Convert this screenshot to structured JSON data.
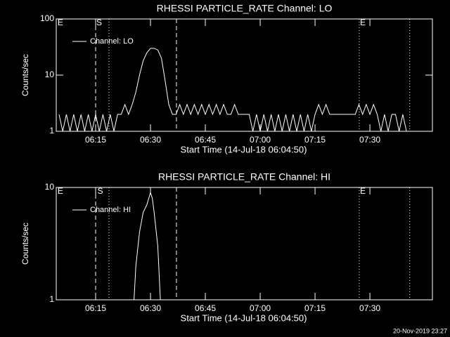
{
  "chart_data": [
    {
      "type": "line",
      "title": "RHESSI PARTICLE_RATE Channel: LO",
      "xlabel": "Start Time (14-Jul-18 06:04:50)",
      "ylabel": "Counts/sec",
      "log_y": true,
      "ylim": [
        1,
        100
      ],
      "yticks": [
        1,
        10,
        100
      ],
      "xlim": [
        4.23,
        107.1
      ],
      "xticks": [
        {
          "value": 15,
          "label": "06:15"
        },
        {
          "value": 30,
          "label": "06:30"
        },
        {
          "value": 45,
          "label": "06:45"
        },
        {
          "value": 60,
          "label": "07:00"
        },
        {
          "value": 75,
          "label": "07:15"
        },
        {
          "value": 90,
          "label": "07:30"
        }
      ],
      "legend": "upper left",
      "vlines": [
        {
          "x": 15,
          "style": "dashed"
        },
        {
          "x": 18.65,
          "style": "dotted"
        },
        {
          "x": 37.1,
          "style": "dashed"
        },
        {
          "x": 87.1,
          "style": "dotted"
        },
        {
          "x": 100.9,
          "style": "dotted"
        }
      ],
      "annotations": [
        {
          "text": "E",
          "x": 4.6
        },
        {
          "text": "S",
          "x": 15.2
        },
        {
          "text": "E",
          "x": 87.3
        }
      ],
      "x": [
        5,
        6,
        7,
        8,
        9,
        10,
        11,
        12,
        13,
        14,
        15,
        16,
        17,
        18,
        19,
        20,
        21,
        22,
        23,
        24,
        25,
        26,
        27,
        28,
        29,
        30,
        31,
        32,
        33,
        34,
        35,
        36,
        37,
        38,
        39,
        40,
        41,
        42,
        43,
        44,
        45,
        46,
        47,
        48,
        49,
        50,
        51,
        52,
        53,
        54,
        55,
        56,
        57,
        58,
        59,
        60,
        61,
        62,
        63,
        64,
        65,
        66,
        67,
        68,
        69,
        70,
        71,
        72,
        73,
        74,
        75,
        76,
        77,
        78,
        79,
        80,
        81,
        82,
        83,
        84,
        85,
        86,
        87,
        88,
        89,
        90,
        91,
        92,
        93,
        94,
        95,
        96,
        97,
        98,
        99,
        100,
        101
      ],
      "series": [
        {
          "name": "Channel: LO",
          "color": "#ffffff",
          "values": [
            2,
            1,
            2,
            1,
            2,
            1,
            2,
            1,
            2,
            1,
            2,
            1,
            2,
            1,
            2,
            1,
            2,
            2,
            3,
            2,
            3,
            5,
            10,
            18,
            25,
            30,
            30,
            28,
            20,
            8,
            3,
            2,
            2,
            3,
            2,
            3,
            2,
            3,
            2,
            3,
            2,
            3,
            2,
            3,
            2,
            3,
            2,
            2,
            3,
            2,
            2,
            2,
            2,
            1,
            2,
            1,
            2,
            1,
            2,
            1,
            2,
            1,
            2,
            1,
            2,
            1,
            2,
            1,
            2,
            1,
            2,
            3,
            2,
            3,
            2,
            2,
            2,
            2,
            2,
            2,
            2,
            2,
            3,
            2,
            3,
            2,
            3,
            2,
            1,
            2,
            1,
            2,
            2,
            1,
            2,
            1,
            1
          ]
        }
      ]
    },
    {
      "type": "line",
      "title": "RHESSI PARTICLE_RATE Channel: HI",
      "xlabel": "Start Time (14-Jul-18 06:04:50)",
      "ylabel": "Counts/sec",
      "log_y": true,
      "ylim": [
        1,
        10
      ],
      "yticks": [
        1,
        10
      ],
      "xlim": [
        4.23,
        107.1
      ],
      "xticks": [
        {
          "value": 15,
          "label": "06:15"
        },
        {
          "value": 30,
          "label": "06:30"
        },
        {
          "value": 45,
          "label": "06:45"
        },
        {
          "value": 60,
          "label": "07:00"
        },
        {
          "value": 75,
          "label": "07:15"
        },
        {
          "value": 90,
          "label": "07:30"
        }
      ],
      "legend": "upper left",
      "vlines": [
        {
          "x": 15,
          "style": "dashed"
        },
        {
          "x": 18.65,
          "style": "dotted"
        },
        {
          "x": 37.1,
          "style": "dashed"
        },
        {
          "x": 87.1,
          "style": "dotted"
        },
        {
          "x": 100.9,
          "style": "dotted"
        }
      ],
      "annotations": [
        {
          "text": "E",
          "x": 4.6
        },
        {
          "text": "S",
          "x": 15.5
        },
        {
          "text": "E",
          "x": 87.3
        }
      ],
      "x": [
        25.5,
        26,
        27,
        28,
        29,
        30,
        30.5,
        31,
        32,
        32.7
      ],
      "series": [
        {
          "name": "Channel: HI",
          "color": "#ffffff",
          "values": [
            1,
            2,
            4,
            6,
            7,
            9,
            8,
            6,
            3,
            1
          ]
        }
      ]
    }
  ],
  "footer": "20-Nov-2019 23:27"
}
